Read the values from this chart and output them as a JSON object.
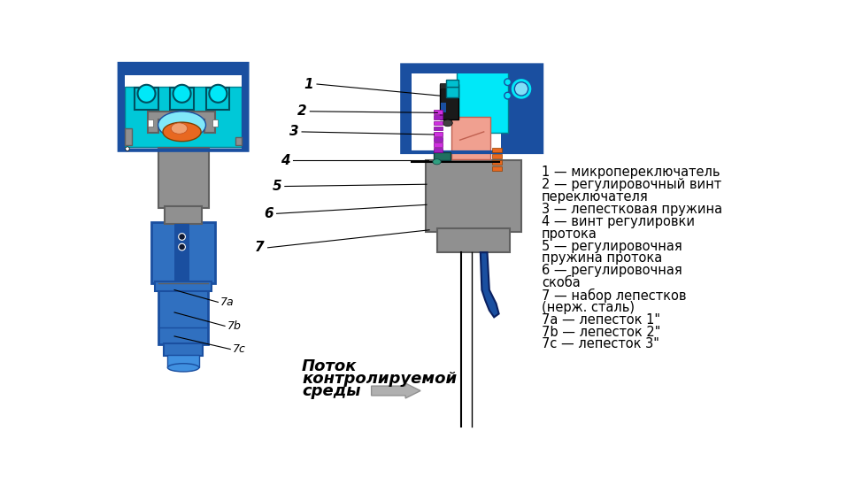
{
  "bg_color": "#ffffff",
  "legend_lines": [
    "1 — микропереключатель",
    "2 — регулировочный винт",
    "переключателя",
    "3 — лепестковая пружина",
    "4 — винт регулировки",
    "протока",
    "5 — регулировочная",
    "пружина протока",
    "6 — регулировочная",
    "скоба",
    "7 — набор лепестков",
    "(нерж. сталь)",
    "7a — лепесток 1\"",
    "7b — лепесток 2\"",
    "7c — лепесток 3\""
  ],
  "flow_line1": "Поток",
  "flow_line2": "контролируемой",
  "flow_line3": "среды",
  "blue_dark": "#1a4fa0",
  "blue_mid": "#3070c0",
  "blue_bright": "#4090e0",
  "cyan_light": "#00e8f8",
  "cyan_mid": "#00c8d8",
  "gray": "#909090",
  "gray_dark": "#606060",
  "orange": "#e86820",
  "salmon": "#f0a090",
  "purple": "#d030e0",
  "teal_dark": "#207060",
  "arrow_gray": "#b0b0b0",
  "wire_blue": "#1a4fa0"
}
